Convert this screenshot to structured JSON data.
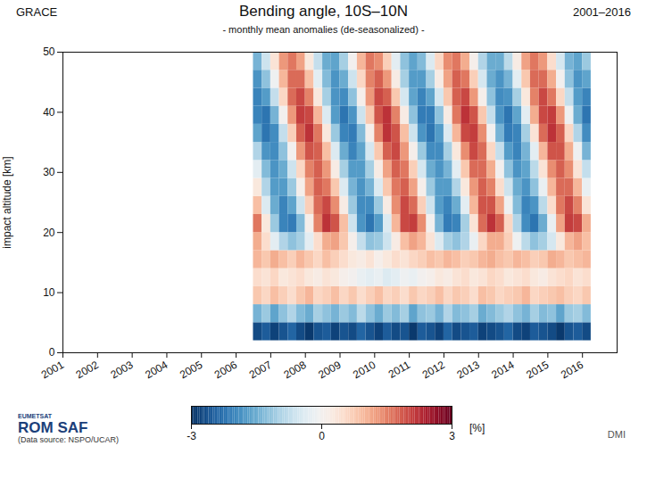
{
  "chart_data": {
    "type": "heatmap",
    "title": "Bending angle, 10S–10N",
    "subtitle": "- monthly mean anomalies (de-seasonalized) -",
    "annotations": [
      "GRACE",
      "2001–2016",
      "EUMETSAT",
      "ROM SAF",
      "(Data source: NSPO/UCAR)",
      "DMI"
    ],
    "ylabel": "impact altitude [km]",
    "xlim": [
      2001,
      2017
    ],
    "xticks": [
      2001,
      2002,
      2003,
      2004,
      2005,
      2006,
      2007,
      2008,
      2009,
      2010,
      2011,
      2012,
      2013,
      2014,
      2015,
      2016
    ],
    "ylim": [
      0,
      50
    ],
    "yticks": [
      0,
      10,
      20,
      30,
      40,
      50
    ],
    "color": "RdBu_r",
    "colorbar": {
      "range": [
        -3,
        3
      ],
      "ticks": [
        -3,
        0,
        3
      ],
      "label": "[%]"
    },
    "x_bins": [
      2006.5,
      2006.75,
      2007,
      2007.25,
      2007.5,
      2007.75,
      2008,
      2008.25,
      2008.5,
      2008.75,
      2009,
      2009.25,
      2009.5,
      2009.75,
      2010,
      2010.25,
      2010.5,
      2010.75,
      2011,
      2011.25,
      2011.5,
      2011.75,
      2012,
      2012.25,
      2012.5,
      2012.75,
      2013,
      2013.25,
      2013.5,
      2013.75,
      2014,
      2014.25,
      2014.5,
      2014.75,
      2015,
      2015.25,
      2015.5,
      2015.75,
      2016,
      2016.25
    ],
    "y_bins": [
      2,
      5,
      8,
      11,
      14,
      17,
      20,
      23,
      26,
      29,
      32,
      35,
      38,
      41,
      44,
      47,
      50
    ],
    "values": [
      [
        -2.7,
        -2.5,
        -2.8,
        -2.6,
        -2.4,
        -2.7,
        -2.9,
        -2.6,
        -2.5,
        -2.8,
        -2.6,
        -2.7,
        -2.4,
        -2.6,
        -2.8,
        -2.5,
        -2.7,
        -2.6,
        -2.9,
        -2.5,
        -2.6,
        -2.8,
        -2.4,
        -2.7,
        -2.6,
        -2.5,
        -2.8,
        -2.7,
        -2.6,
        -2.4,
        -2.7,
        -2.8,
        -2.5,
        -2.6,
        -2.7,
        -2.9,
        -2.6,
        -2.5,
        -2.7
      ],
      [
        -1.4,
        -1.1,
        -1.6,
        -1.2,
        -0.9,
        -1.3,
        -1.5,
        -1.0,
        -1.2,
        -1.4,
        -1.1,
        -1.3,
        -0.8,
        -1.2,
        -1.5,
        -1.1,
        -1.3,
        -1.0,
        -1.6,
        -1.2,
        -1.1,
        -1.4,
        -0.9,
        -1.3,
        -1.2,
        -1.0,
        -1.5,
        -1.3,
        -1.1,
        -0.9,
        -1.2,
        -1.4,
        -1.0,
        -1.3,
        -1.2,
        -1.6,
        -1.1,
        -1.0,
        -1.3
      ],
      [
        0.8,
        0.6,
        0.9,
        0.7,
        0.5,
        0.8,
        1.0,
        0.6,
        0.7,
        0.9,
        0.6,
        0.8,
        0.5,
        0.7,
        0.9,
        0.6,
        0.7,
        0.5,
        0.8,
        0.6,
        0.7,
        0.9,
        0.6,
        0.8,
        0.7,
        0.5,
        0.9,
        0.8,
        0.6,
        0.7,
        0.8,
        1.0,
        0.6,
        0.7,
        0.8,
        0.9,
        0.7,
        0.6,
        0.8
      ],
      [
        0.5,
        0.4,
        0.6,
        0.3,
        0.4,
        0.5,
        0.3,
        0.2,
        0.4,
        0.3,
        0.1,
        0.0,
        -0.2,
        -0.3,
        -0.2,
        -0.4,
        -0.3,
        -0.1,
        -0.2,
        0.0,
        0.1,
        0.3,
        0.2,
        0.4,
        0.5,
        0.3,
        0.4,
        0.6,
        0.5,
        0.3,
        0.4,
        0.5,
        0.3,
        0.2,
        0.4,
        0.5,
        0.6,
        0.4,
        0.5
      ],
      [
        1.0,
        0.8,
        1.1,
        0.9,
        0.7,
        1.0,
        0.8,
        0.6,
        0.9,
        0.7,
        0.5,
        0.3,
        0.2,
        0.4,
        0.1,
        0.3,
        0.5,
        0.4,
        0.6,
        0.7,
        0.9,
        0.8,
        1.0,
        0.9,
        0.7,
        0.8,
        1.0,
        1.1,
        0.9,
        0.8,
        1.0,
        0.9,
        0.7,
        0.8,
        1.1,
        1.0,
        0.8,
        0.9,
        1.0
      ],
      [
        1.1,
        0.5,
        -0.3,
        -0.9,
        -1.2,
        -1.0,
        -0.3,
        0.5,
        1.1,
        1.2,
        0.8,
        0.1,
        -0.7,
        -1.2,
        -1.1,
        -0.6,
        0.2,
        0.9,
        1.2,
        1.0,
        0.4,
        -0.4,
        -1.0,
        -1.2,
        -0.9,
        -0.2,
        0.6,
        1.1,
        1.1,
        0.7,
        -0.1,
        -0.8,
        -1.2,
        -1.0,
        -0.5,
        0.3,
        1.0,
        1.2,
        0.9
      ],
      [
        1.6,
        0.3,
        -1.1,
        -2.0,
        -2.1,
        -1.3,
        0.1,
        1.5,
        2.2,
        1.9,
        0.9,
        -0.6,
        -1.8,
        -2.2,
        -1.7,
        -0.4,
        1.0,
        2.0,
        2.1,
        1.4,
        0.0,
        -1.4,
        -2.1,
        -2.0,
        -1.0,
        0.4,
        1.7,
        2.2,
        1.8,
        0.6,
        -0.9,
        -1.9,
        -2.2,
        -1.5,
        -0.2,
        1.2,
        2.1,
        2.0,
        1.1
      ],
      [
        0.9,
        -0.4,
        -1.5,
        -2.0,
        -1.6,
        -0.6,
        0.7,
        1.7,
        2.0,
        1.4,
        0.2,
        -1.1,
        -1.9,
        -1.9,
        -1.1,
        0.2,
        1.4,
        2.0,
        1.7,
        0.7,
        -0.6,
        -1.7,
        -2.0,
        -1.5,
        -0.3,
        1.0,
        1.9,
        1.9,
        1.2,
        -0.1,
        -1.3,
        -2.0,
        -1.8,
        -0.8,
        0.5,
        1.6,
        2.0,
        1.5,
        0.4
      ],
      [
        0.3,
        -0.9,
        -1.7,
        -1.7,
        -1.1,
        0.1,
        1.2,
        1.8,
        1.6,
        0.8,
        -0.4,
        -1.4,
        -1.8,
        -1.4,
        -0.4,
        0.8,
        1.6,
        1.8,
        1.2,
        0.1,
        -1.1,
        -1.7,
        -1.7,
        -0.9,
        0.3,
        1.3,
        1.8,
        1.5,
        0.5,
        -0.6,
        -1.5,
        -1.8,
        -1.2,
        -0.2,
        1.0,
        1.7,
        1.7,
        1.0,
        -0.2
      ],
      [
        -0.3,
        -1.3,
        -1.8,
        -1.5,
        -0.6,
        0.6,
        1.5,
        1.8,
        1.3,
        0.2,
        -1.0,
        -1.7,
        -1.7,
        -1.0,
        0.2,
        1.2,
        1.8,
        1.6,
        0.7,
        -0.5,
        -1.5,
        -1.8,
        -1.4,
        -0.3,
        0.8,
        1.7,
        1.7,
        1.1,
        0.0,
        -1.2,
        -1.8,
        -1.6,
        -0.8,
        0.4,
        1.4,
        1.8,
        1.4,
        0.4,
        -0.7
      ],
      [
        -0.9,
        -1.8,
        -1.9,
        -1.2,
        0.0,
        1.3,
        1.9,
        1.8,
        0.9,
        -0.4,
        -1.5,
        -2.0,
        -1.6,
        -0.5,
        0.8,
        1.8,
        2.0,
        1.3,
        0.1,
        -1.1,
        -1.9,
        -1.9,
        -1.0,
        0.3,
        1.4,
        2.0,
        1.7,
        0.6,
        -0.7,
        -1.7,
        -2.0,
        -1.4,
        -0.3,
        1.0,
        1.9,
        1.9,
        1.1,
        -0.1,
        -1.4
      ],
      [
        -1.6,
        -2.2,
        -1.9,
        -0.7,
        0.7,
        1.8,
        2.2,
        1.6,
        0.3,
        -1.1,
        -2.0,
        -2.1,
        -1.3,
        0.1,
        1.5,
        2.2,
        1.9,
        0.9,
        -0.6,
        -1.8,
        -2.2,
        -1.7,
        -0.4,
        1.0,
        2.0,
        2.1,
        1.4,
        0.0,
        -1.4,
        -2.1,
        -2.0,
        -1.0,
        0.4,
        1.7,
        2.2,
        1.8,
        0.6,
        -0.9,
        -1.9
      ],
      [
        -2.0,
        -2.2,
        -1.4,
        0.0,
        1.3,
        2.1,
        2.0,
        1.0,
        -0.4,
        -1.7,
        -2.2,
        -1.8,
        -0.6,
        0.8,
        1.9,
        2.2,
        1.5,
        0.2,
        -1.2,
        -2.1,
        -2.1,
        -1.2,
        0.2,
        1.6,
        2.2,
        1.9,
        0.8,
        -0.7,
        -1.8,
        -2.2,
        -1.6,
        -0.3,
        1.1,
        2.0,
        2.1,
        1.3,
        -0.1,
        -1.5,
        -2.2
      ],
      [
        -2.0,
        -1.7,
        -0.7,
        0.6,
        1.7,
        2.0,
        1.5,
        0.3,
        -1.0,
        -1.8,
        -1.9,
        -1.2,
        0.1,
        1.3,
        2.0,
        1.8,
        0.8,
        -0.5,
        -1.6,
        -2.0,
        -1.6,
        -0.5,
        0.8,
        1.8,
        2.0,
        1.3,
        0.1,
        -1.2,
        -1.9,
        -1.8,
        -1.0,
        0.3,
        1.5,
        2.0,
        1.6,
        0.6,
        -0.7,
        -1.7,
        -2.0
      ],
      [
        -1.8,
        -1.2,
        -0.1,
        1.0,
        1.7,
        1.7,
        0.9,
        -0.3,
        -1.3,
        -1.8,
        -1.5,
        -0.6,
        0.6,
        1.5,
        1.8,
        1.3,
        0.2,
        -1.0,
        -1.7,
        -1.7,
        -1.0,
        0.2,
        1.2,
        1.8,
        1.6,
        0.7,
        -0.5,
        -1.5,
        -1.8,
        -1.4,
        -0.3,
        0.8,
        1.7,
        1.7,
        1.1,
        0.0,
        -1.2,
        -1.8,
        -1.6
      ],
      [
        -1.4,
        -0.6,
        0.4,
        1.3,
        1.6,
        1.2,
        0.3,
        -0.7,
        -1.5,
        -1.6,
        -1.0,
        0.0,
        1.0,
        1.6,
        1.4,
        0.7,
        -0.3,
        -1.2,
        -1.6,
        -1.3,
        -0.4,
        0.6,
        1.4,
        1.6,
        1.1,
        0.1,
        -0.9,
        -1.5,
        -1.5,
        -0.8,
        0.2,
        1.2,
        1.6,
        1.3,
        0.5,
        -0.5,
        -1.4,
        -1.6,
        -1.1
      ]
    ]
  }
}
